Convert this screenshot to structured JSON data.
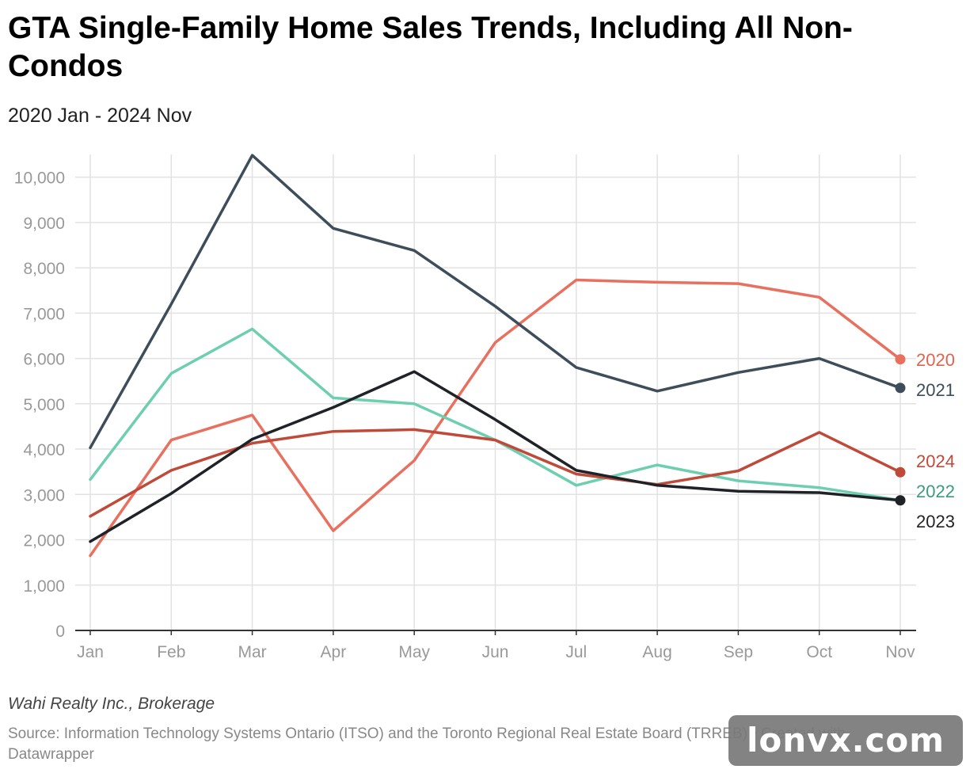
{
  "header": {
    "title": "GTA Single-Family Home Sales Trends, Including All Non-Condos",
    "subtitle": "2020 Jan - 2024 Nov"
  },
  "footer": {
    "byline": "Wahi Realty Inc., Brokerage",
    "source": "Source: Information Technology Systems Ontario (ITSO) and the Toronto Regional Real Estate Board (TRREB) • Created with Datawrapper",
    "watermark": "lonvx.com"
  },
  "chart_data": {
    "type": "line",
    "title": "GTA Single-Family Home Sales Trends, Including All Non-Condos",
    "subtitle": "2020 Jan - 2024 Nov",
    "xlabel": "",
    "ylabel": "",
    "categories": [
      "Jan",
      "Feb",
      "Mar",
      "Apr",
      "May",
      "Jun",
      "Jul",
      "Aug",
      "Sep",
      "Oct",
      "Nov"
    ],
    "ylim": [
      0,
      10500
    ],
    "yticks": [
      0,
      1000,
      2000,
      3000,
      4000,
      5000,
      6000,
      7000,
      8000,
      9000,
      10000
    ],
    "ytick_labels": [
      "0",
      "1,000",
      "2,000",
      "3,000",
      "4,000",
      "5,000",
      "6,000",
      "7,000",
      "8,000",
      "9,000",
      "10,000"
    ],
    "grid": true,
    "legend": "direct labels at line ends (right)",
    "series": [
      {
        "name": "2020",
        "color": "#e8705f",
        "values": [
          1650,
          4200,
          4750,
          2200,
          3750,
          6350,
          7730,
          7680,
          7650,
          7350,
          5980
        ]
      },
      {
        "name": "2021",
        "color": "#3d4d59",
        "values": [
          4030,
          7200,
          10480,
          8870,
          8380,
          7150,
          5800,
          5280,
          5690,
          6000,
          5350
        ]
      },
      {
        "name": "2022",
        "color": "#6dcfb0",
        "values": [
          3330,
          5670,
          6650,
          5130,
          5000,
          4200,
          3200,
          3650,
          3300,
          3150,
          2870
        ]
      },
      {
        "name": "2023",
        "color": "#1f2226",
        "values": [
          1960,
          3020,
          4220,
          4920,
          5710,
          4650,
          3530,
          3200,
          3070,
          3040,
          2870
        ]
      },
      {
        "name": "2024",
        "color": "#bf4a3a",
        "values": [
          2520,
          3530,
          4130,
          4390,
          4430,
          4200,
          3450,
          3220,
          3520,
          4370,
          3490
        ]
      }
    ],
    "end_labels": [
      {
        "series": "2020",
        "text": "2020",
        "color": "#e0634f"
      },
      {
        "series": "2021",
        "text": "2021",
        "color": "#3d4d59"
      },
      {
        "series": "2024",
        "text": "2024",
        "color": "#bf4a3a"
      },
      {
        "series": "2022",
        "text": "2022",
        "color": "#3a9c78"
      },
      {
        "series": "2023",
        "text": "2023",
        "color": "#1f2226"
      }
    ]
  }
}
